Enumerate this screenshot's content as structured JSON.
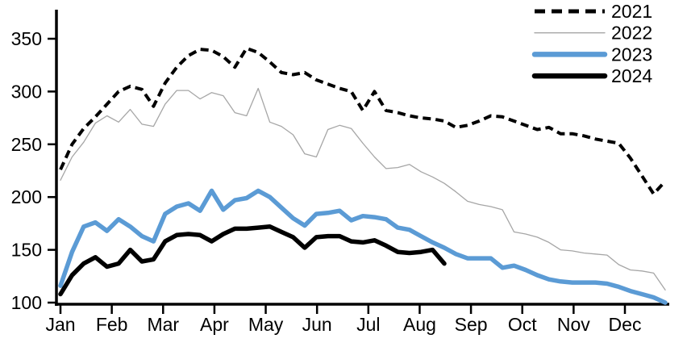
{
  "chart_data": {
    "type": "line",
    "title": "",
    "x_unit": "weekly points, Jan through Dec",
    "legend_position": "top-right",
    "grid": "off",
    "x_axis": {
      "tick_labels": [
        "Jan",
        "Feb",
        "Mar",
        "Apr",
        "May",
        "Jun",
        "Jul",
        "Aug",
        "Sep",
        "Oct",
        "Nov",
        "Dec"
      ]
    },
    "y_axis": {
      "ticks": [
        100,
        150,
        200,
        250,
        300,
        350
      ],
      "range": [
        100,
        360
      ]
    },
    "series": [
      {
        "name": "2021",
        "color": "#000000",
        "style": "dashed",
        "width": 4,
        "values": [
          226,
          250,
          265,
          276,
          288,
          300,
          305,
          302,
          286,
          308,
          323,
          334,
          340,
          339,
          333,
          323,
          341,
          337,
          328,
          318,
          316,
          318,
          311,
          307,
          303,
          300,
          282,
          300,
          282,
          280,
          277,
          275,
          274,
          272,
          266,
          268,
          272,
          277,
          276,
          272,
          268,
          264,
          266,
          260,
          260,
          258,
          255,
          253,
          251,
          237,
          220,
          203,
          215
        ]
      },
      {
        "name": "2022",
        "color": "#a6a6a6",
        "style": "solid",
        "width": 1.3,
        "values": [
          216,
          238,
          252,
          270,
          277,
          271,
          283,
          269,
          267,
          288,
          301,
          301,
          293,
          299,
          296,
          280,
          277,
          303,
          271,
          267,
          259,
          241,
          238,
          264,
          268,
          265,
          251,
          238,
          227,
          228,
          231,
          224,
          219,
          213,
          205,
          196,
          193,
          191,
          188,
          167,
          165,
          162,
          157,
          150,
          149,
          147,
          146,
          145,
          136,
          131,
          130,
          128,
          112
        ]
      },
      {
        "name": "2023",
        "color": "#5b9bd5",
        "style": "solid",
        "width": 5.5,
        "values": [
          116,
          148,
          172,
          176,
          168,
          179,
          172,
          163,
          158,
          184,
          191,
          194,
          187,
          206,
          188,
          197,
          199,
          206,
          200,
          190,
          180,
          173,
          184,
          185,
          187,
          178,
          182,
          181,
          179,
          171,
          169,
          163,
          157,
          152,
          146,
          142,
          142,
          142,
          133,
          135,
          131,
          126,
          122,
          120,
          119,
          119,
          119,
          118,
          115,
          111,
          108,
          105,
          100
        ]
      },
      {
        "name": "2024",
        "color": "#000000",
        "style": "solid",
        "width": 5.5,
        "values": [
          108,
          126,
          137,
          143,
          134,
          137,
          150,
          139,
          141,
          158,
          164,
          165,
          164,
          158,
          165,
          170,
          170,
          171,
          172,
          167,
          162,
          152,
          162,
          163,
          163,
          158,
          157,
          159,
          154,
          148,
          147,
          148,
          150,
          137
        ]
      }
    ]
  }
}
